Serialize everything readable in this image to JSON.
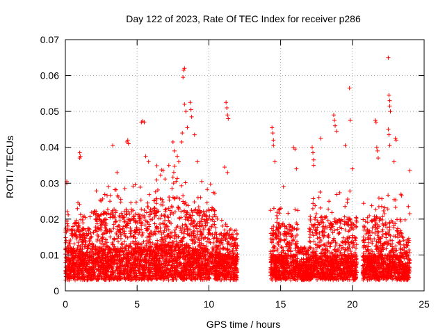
{
  "chart_data": {
    "type": "scatter",
    "title": "Day 122 of 2023, Rate Of TEC Index for receiver p286",
    "xlabel": "GPS time / hours",
    "ylabel": "ROTI / TECUs",
    "xlim": [
      0,
      25
    ],
    "ylim": [
      0,
      0.07
    ],
    "xticks": [
      0,
      5,
      10,
      15,
      20,
      25
    ],
    "yticks": [
      0,
      0.01,
      0.02,
      0.03,
      0.04,
      0.05,
      0.06,
      0.07
    ],
    "xtick_labels": [
      "0",
      "5",
      "10",
      "15",
      "20",
      "25"
    ],
    "ytick_labels": [
      "0",
      "0.01",
      "0.02",
      "0.03",
      "0.04",
      "0.05",
      "0.06",
      "0.07"
    ],
    "grid": true,
    "marker": "+",
    "color": "#ff0000",
    "density_profile": [
      [
        0.0,
        1.0,
        0.012,
        0.025
      ],
      [
        1.0,
        2.0,
        0.011,
        0.022
      ],
      [
        2.0,
        6.0,
        0.012,
        0.03
      ],
      [
        6.0,
        8.5,
        0.013,
        0.035
      ],
      [
        8.5,
        10.5,
        0.012,
        0.03
      ],
      [
        10.5,
        12.0,
        0.01,
        0.02
      ],
      [
        14.3,
        16.2,
        0.01,
        0.025
      ],
      [
        16.2,
        17.0,
        0.008,
        0.015
      ],
      [
        17.0,
        20.3,
        0.01,
        0.028
      ],
      [
        20.7,
        23.5,
        0.01,
        0.027
      ],
      [
        23.5,
        24.0,
        0.008,
        0.02
      ]
    ],
    "points": [
      [
        0.1,
        0.03
      ],
      [
        0.1,
        0.0305
      ],
      [
        1.0,
        0.037
      ],
      [
        1.0,
        0.0385
      ],
      [
        1.05,
        0.0375
      ],
      [
        3.3,
        0.0405
      ],
      [
        3.6,
        0.033
      ],
      [
        4.3,
        0.0415
      ],
      [
        4.35,
        0.042
      ],
      [
        4.4,
        0.041
      ],
      [
        5.3,
        0.047
      ],
      [
        5.4,
        0.0473
      ],
      [
        5.5,
        0.047
      ],
      [
        5.6,
        0.0375
      ],
      [
        5.8,
        0.036
      ],
      [
        7.5,
        0.0415
      ],
      [
        7.6,
        0.039
      ],
      [
        7.8,
        0.0375
      ],
      [
        7.9,
        0.036
      ],
      [
        8.1,
        0.0415
      ],
      [
        8.15,
        0.044
      ],
      [
        8.2,
        0.0595
      ],
      [
        8.25,
        0.0615
      ],
      [
        8.3,
        0.062
      ],
      [
        8.3,
        0.052
      ],
      [
        8.4,
        0.05
      ],
      [
        8.5,
        0.0455
      ],
      [
        8.7,
        0.0525
      ],
      [
        8.75,
        0.0505
      ],
      [
        8.8,
        0.0485
      ],
      [
        9.0,
        0.0435
      ],
      [
        9.2,
        0.036
      ],
      [
        9.5,
        0.0305
      ],
      [
        11.2,
        0.0525
      ],
      [
        11.25,
        0.051
      ],
      [
        11.3,
        0.049
      ],
      [
        11.35,
        0.048
      ],
      [
        11.1,
        0.0345
      ],
      [
        11.3,
        0.033
      ],
      [
        14.4,
        0.0455
      ],
      [
        14.45,
        0.044
      ],
      [
        14.5,
        0.042
      ],
      [
        14.5,
        0.0405
      ],
      [
        14.6,
        0.036
      ],
      [
        15.2,
        0.029
      ],
      [
        15.9,
        0.04
      ],
      [
        16.0,
        0.0395
      ],
      [
        16.1,
        0.034
      ],
      [
        17.2,
        0.04
      ],
      [
        17.25,
        0.0385
      ],
      [
        17.3,
        0.0365
      ],
      [
        17.3,
        0.035
      ],
      [
        17.8,
        0.0425
      ],
      [
        18.7,
        0.049
      ],
      [
        18.75,
        0.0475
      ],
      [
        18.8,
        0.046
      ],
      [
        18.9,
        0.0445
      ],
      [
        19.5,
        0.0405
      ],
      [
        19.8,
        0.0565
      ],
      [
        19.85,
        0.0475
      ],
      [
        20.0,
        0.034
      ],
      [
        21.6,
        0.0475
      ],
      [
        21.65,
        0.047
      ],
      [
        21.7,
        0.04
      ],
      [
        21.75,
        0.039
      ],
      [
        21.8,
        0.037
      ],
      [
        22.5,
        0.065
      ],
      [
        22.55,
        0.0545
      ],
      [
        22.6,
        0.053
      ],
      [
        22.6,
        0.0515
      ],
      [
        22.65,
        0.05
      ],
      [
        22.5,
        0.045
      ],
      [
        22.55,
        0.0435
      ],
      [
        22.6,
        0.0405
      ],
      [
        23.0,
        0.0425
      ],
      [
        23.05,
        0.042
      ],
      [
        22.9,
        0.036
      ],
      [
        24.0,
        0.0335
      ],
      [
        23.9,
        0.0235
      ],
      [
        24.0,
        0.0215
      ],
      [
        23.95,
        0.014
      ],
      [
        24.0,
        0.0085
      ],
      [
        23.9,
        0.006
      ]
    ]
  }
}
